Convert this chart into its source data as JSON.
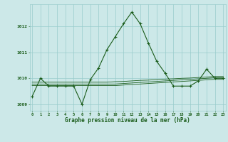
{
  "hours": [
    0,
    1,
    2,
    3,
    4,
    5,
    6,
    7,
    8,
    9,
    10,
    11,
    12,
    13,
    14,
    15,
    16,
    17,
    18,
    19,
    20,
    21,
    22,
    23
  ],
  "pressure_main": [
    1009.3,
    1010.0,
    1009.7,
    1009.7,
    1009.7,
    1009.7,
    1009.0,
    1009.95,
    1010.4,
    1011.1,
    1011.6,
    1012.1,
    1012.55,
    1012.1,
    1011.35,
    1010.65,
    1010.2,
    1009.7,
    1009.7,
    1009.7,
    1009.9,
    1010.35,
    1010.0,
    1010.0
  ],
  "pressure_flat1": [
    1009.72,
    1009.72,
    1009.72,
    1009.72,
    1009.72,
    1009.72,
    1009.72,
    1009.72,
    1009.72,
    1009.72,
    1009.72,
    1009.74,
    1009.76,
    1009.78,
    1009.8,
    1009.82,
    1009.84,
    1009.86,
    1009.88,
    1009.9,
    1009.92,
    1009.94,
    1009.96,
    1009.96
  ],
  "pressure_flat2": [
    1009.78,
    1009.78,
    1009.78,
    1009.78,
    1009.78,
    1009.78,
    1009.78,
    1009.78,
    1009.78,
    1009.78,
    1009.78,
    1009.8,
    1009.82,
    1009.84,
    1009.86,
    1009.88,
    1009.9,
    1009.92,
    1009.94,
    1009.96,
    1009.98,
    1010.0,
    1010.02,
    1010.02
  ],
  "pressure_flat3": [
    1009.85,
    1009.85,
    1009.85,
    1009.85,
    1009.85,
    1009.85,
    1009.85,
    1009.85,
    1009.85,
    1009.85,
    1009.87,
    1009.88,
    1009.9,
    1009.92,
    1009.93,
    1009.95,
    1009.97,
    1009.98,
    1010.0,
    1010.01,
    1010.03,
    1010.05,
    1010.07,
    1010.07
  ],
  "ylim": [
    1008.75,
    1012.85
  ],
  "yticks": [
    1009,
    1010,
    1011,
    1012
  ],
  "xticks": [
    0,
    1,
    2,
    3,
    4,
    5,
    6,
    7,
    8,
    9,
    10,
    11,
    12,
    13,
    14,
    15,
    16,
    17,
    18,
    19,
    20,
    21,
    22,
    23
  ],
  "line_color": "#1a5c1a",
  "bg_color": "#cce8e8",
  "grid_color": "#99cccc",
  "xlabel": "Graphe pression niveau de la mer (hPa)",
  "label_color": "#1a5c1a",
  "marker": "+"
}
